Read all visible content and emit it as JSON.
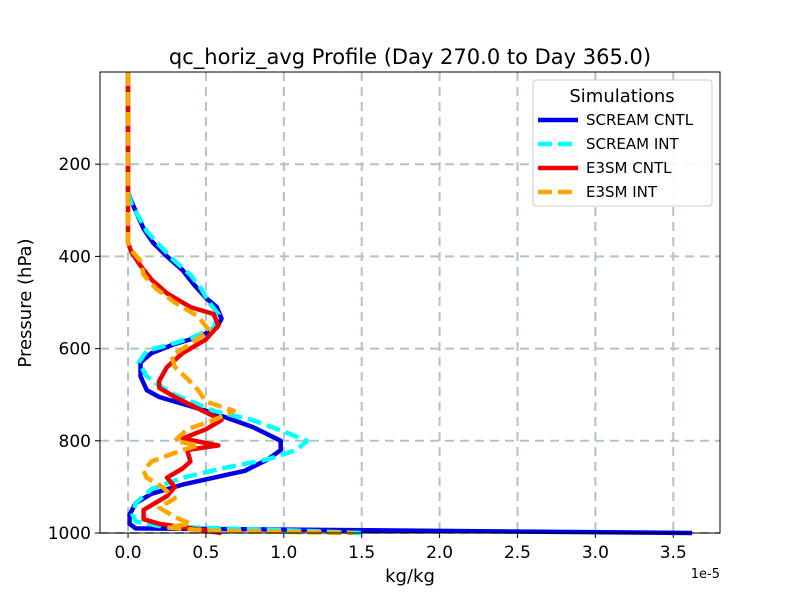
{
  "chart_data": {
    "type": "line",
    "title": "qc_horiz_avg Profile (Day 270.0 to Day 365.0)",
    "xlabel": "kg/kg",
    "ylabel": "Pressure (hPa)",
    "x_offset_label": "1e-5",
    "xlim": [
      -0.18,
      3.8
    ],
    "ylim": [
      1000,
      0
    ],
    "y_inverted": true,
    "x_ticks": [
      0.0,
      0.5,
      1.0,
      1.5,
      2.0,
      2.5,
      3.0,
      3.5
    ],
    "x_tick_labels": [
      "0.0",
      "0.5",
      "1.0",
      "1.5",
      "2.0",
      "2.5",
      "3.0",
      "3.5"
    ],
    "y_ticks": [
      200,
      400,
      600,
      800,
      1000
    ],
    "y_tick_labels": [
      "200",
      "400",
      "600",
      "800",
      "1000"
    ],
    "grid": true,
    "legend": {
      "title": "Simulations",
      "position": "top-right"
    },
    "series": [
      {
        "name": "SCREAM CNTL",
        "color": "#0000e6",
        "dash": "solid",
        "points": [
          [
            0,
            0
          ],
          [
            0,
            260
          ],
          [
            0.02,
            280
          ],
          [
            0.06,
            310
          ],
          [
            0.1,
            340
          ],
          [
            0.16,
            370
          ],
          [
            0.25,
            400
          ],
          [
            0.35,
            430
          ],
          [
            0.42,
            460
          ],
          [
            0.5,
            490
          ],
          [
            0.57,
            510
          ],
          [
            0.6,
            535
          ],
          [
            0.57,
            555
          ],
          [
            0.45,
            575
          ],
          [
            0.3,
            590
          ],
          [
            0.15,
            610
          ],
          [
            0.08,
            630
          ],
          [
            0.08,
            660
          ],
          [
            0.12,
            690
          ],
          [
            0.2,
            705
          ],
          [
            0.35,
            720
          ],
          [
            0.55,
            740
          ],
          [
            0.8,
            770
          ],
          [
            0.98,
            800
          ],
          [
            0.98,
            820
          ],
          [
            0.9,
            840
          ],
          [
            0.75,
            865
          ],
          [
            0.55,
            880
          ],
          [
            0.35,
            895
          ],
          [
            0.15,
            915
          ],
          [
            0.05,
            935
          ],
          [
            0.01,
            960
          ],
          [
            0.01,
            980
          ],
          [
            0.05,
            990
          ],
          [
            3.62,
            1000
          ]
        ]
      },
      {
        "name": "SCREAM INT",
        "color": "#00ffff",
        "dash": "dashed",
        "points": [
          [
            0,
            0
          ],
          [
            0,
            260
          ],
          [
            0.02,
            285
          ],
          [
            0.07,
            315
          ],
          [
            0.12,
            345
          ],
          [
            0.2,
            375
          ],
          [
            0.3,
            410
          ],
          [
            0.4,
            440
          ],
          [
            0.47,
            470
          ],
          [
            0.52,
            500
          ],
          [
            0.58,
            525
          ],
          [
            0.55,
            555
          ],
          [
            0.42,
            575
          ],
          [
            0.28,
            590
          ],
          [
            0.12,
            605
          ],
          [
            0.07,
            630
          ],
          [
            0.12,
            660
          ],
          [
            0.2,
            680
          ],
          [
            0.3,
            700
          ],
          [
            0.55,
            735
          ],
          [
            0.8,
            755
          ],
          [
            1.0,
            780
          ],
          [
            1.15,
            800
          ],
          [
            1.08,
            820
          ],
          [
            0.9,
            840
          ],
          [
            0.6,
            860
          ],
          [
            0.35,
            880
          ],
          [
            0.15,
            905
          ],
          [
            0.05,
            935
          ],
          [
            0.03,
            960
          ],
          [
            0.05,
            975
          ],
          [
            0.2,
            985
          ],
          [
            0.6,
            990
          ],
          [
            1.1,
            995
          ],
          [
            1.5,
            1000
          ]
        ]
      },
      {
        "name": "E3SM CNTL",
        "color": "#ee0000",
        "dash": "solid",
        "points": [
          [
            0,
            0
          ],
          [
            0,
            370
          ],
          [
            0.02,
            390
          ],
          [
            0.08,
            420
          ],
          [
            0.15,
            450
          ],
          [
            0.25,
            480
          ],
          [
            0.4,
            510
          ],
          [
            0.55,
            525
          ],
          [
            0.58,
            550
          ],
          [
            0.5,
            580
          ],
          [
            0.35,
            610
          ],
          [
            0.25,
            640
          ],
          [
            0.2,
            670
          ],
          [
            0.2,
            685
          ],
          [
            0.3,
            705
          ],
          [
            0.45,
            730
          ],
          [
            0.6,
            755
          ],
          [
            0.5,
            775
          ],
          [
            0.35,
            795
          ],
          [
            0.58,
            810
          ],
          [
            0.38,
            820
          ],
          [
            0.4,
            845
          ],
          [
            0.35,
            860
          ],
          [
            0.25,
            880
          ],
          [
            0.3,
            900
          ],
          [
            0.25,
            920
          ],
          [
            0.1,
            950
          ],
          [
            0.1,
            970
          ],
          [
            0.2,
            980
          ],
          [
            0.4,
            990
          ],
          [
            0.6,
            1000
          ]
        ]
      },
      {
        "name": "E3SM INT",
        "color": "#ffa500",
        "dash": "dashed",
        "points": [
          [
            0,
            0
          ],
          [
            0,
            370
          ],
          [
            0.03,
            390
          ],
          [
            0.08,
            410
          ],
          [
            0.1,
            440
          ],
          [
            0.18,
            470
          ],
          [
            0.3,
            500
          ],
          [
            0.45,
            530
          ],
          [
            0.52,
            560
          ],
          [
            0.4,
            590
          ],
          [
            0.28,
            615
          ],
          [
            0.3,
            640
          ],
          [
            0.38,
            665
          ],
          [
            0.45,
            690
          ],
          [
            0.5,
            715
          ],
          [
            0.68,
            735
          ],
          [
            0.55,
            755
          ],
          [
            0.38,
            775
          ],
          [
            0.3,
            800
          ],
          [
            0.45,
            810
          ],
          [
            0.35,
            820
          ],
          [
            0.15,
            845
          ],
          [
            0.1,
            865
          ],
          [
            0.12,
            880
          ],
          [
            0.22,
            900
          ],
          [
            0.3,
            925
          ],
          [
            0.2,
            945
          ],
          [
            0.3,
            965
          ],
          [
            0.4,
            980
          ],
          [
            0.25,
            988
          ],
          [
            0.5,
            995
          ],
          [
            1.45,
            1000
          ]
        ]
      }
    ]
  }
}
